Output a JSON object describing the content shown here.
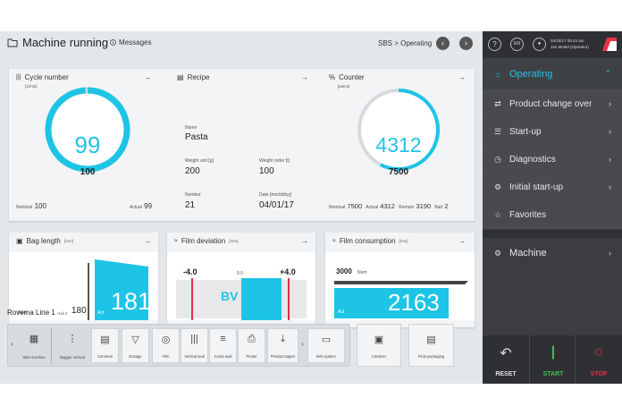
{
  "header": {
    "title": "Machine running",
    "messages": "Messages",
    "breadcrumb": "SBS > Operating"
  },
  "user": {
    "help": "?",
    "language": "EN",
    "datetime": "04/18/17 08:43 am",
    "name": "Jan Model (Operator)"
  },
  "cycle": {
    "title": "Cycle number",
    "unit": "[1/min]",
    "value": "99",
    "sub_value": "100",
    "nominal_label": "Nominal",
    "nominal": "100",
    "actual_label": "Actual",
    "actual": "99",
    "gauge_fraction": 0.99
  },
  "recipe": {
    "title": "Recipe",
    "name_label": "Name",
    "name": "Pasta",
    "weight_unit_label": "Weight unit [g]",
    "weight_unit": "200",
    "weight_order_label": "Weight order [t]",
    "weight_order": "100",
    "number_label": "Number",
    "number": "21",
    "date_label": "Date [mm/dd/yy]",
    "date": "04/01/17"
  },
  "counter": {
    "title": "Counter",
    "unit": "[piece]",
    "value": "4312",
    "sub_value": "7500",
    "nominal_label": "Nominal",
    "nominal": "7500",
    "actual_label": "Actual",
    "actual": "4312",
    "remain_label": "Remain",
    "remain": "3190",
    "bad_label": "Bad",
    "bad": "2",
    "gauge_fraction": 0.575
  },
  "bag_length": {
    "title": "Bag length",
    "unit": "[mm]",
    "nom_label": "Nom",
    "nom": "180",
    "act_label": "Act",
    "act": "181"
  },
  "film_deviation": {
    "title": "Film deviation",
    "unit": "[mm]",
    "min": "-4.0",
    "zero": "0.0",
    "max": "+4.0",
    "bv": "BV"
  },
  "film_consumption": {
    "title": "Film consumption",
    "unit": "[mm]",
    "nom": "3000",
    "nom_label": "Nom",
    "act_label": "Act",
    "act": "2163"
  },
  "machine_line": {
    "title": "Rovema Line 1",
    "hall": "Hall 2",
    "tools": [
      {
        "label": "SBS machine",
        "icon": "machine-icon"
      },
      {
        "label": "Bagger vertical",
        "icon": "bagger-icon"
      },
      {
        "label": "Common",
        "icon": "common-icon"
      },
      {
        "label": "Dosage",
        "icon": "dosage-icon"
      },
      {
        "label": "Film",
        "icon": "film-icon"
      },
      {
        "label": "Vertical seal",
        "icon": "vertical-seal-icon"
      },
      {
        "label": "Cross seal",
        "icon": "cross-seal-icon"
      },
      {
        "label": "Printer",
        "icon": "printer-icon"
      },
      {
        "label": "Product tapper",
        "icon": "tapper-icon"
      },
      {
        "label": "Belt system",
        "icon": "belt-icon"
      },
      {
        "label": "Cartoner",
        "icon": "cartoner-icon"
      },
      {
        "label": "Final packaging",
        "icon": "packaging-icon"
      }
    ]
  },
  "sidebar": {
    "operating": "Operating",
    "items": [
      {
        "label": "Product change over",
        "icon": "change-icon"
      },
      {
        "label": "Start-up",
        "icon": "startup-icon"
      },
      {
        "label": "Diagnostics",
        "icon": "diagnostics-icon"
      },
      {
        "label": "Initial start-up",
        "icon": "initial-startup-icon"
      },
      {
        "label": "Favorites",
        "icon": "star-icon"
      }
    ],
    "machine": "Machine",
    "reset": "RESET",
    "start": "START",
    "stop": "STOP"
  },
  "colors": {
    "accent": "#1ec4e6",
    "sidebar": "#3b3d40",
    "start": "#3fbf5a",
    "stop": "#e0304a",
    "logo": "#e8334a"
  }
}
